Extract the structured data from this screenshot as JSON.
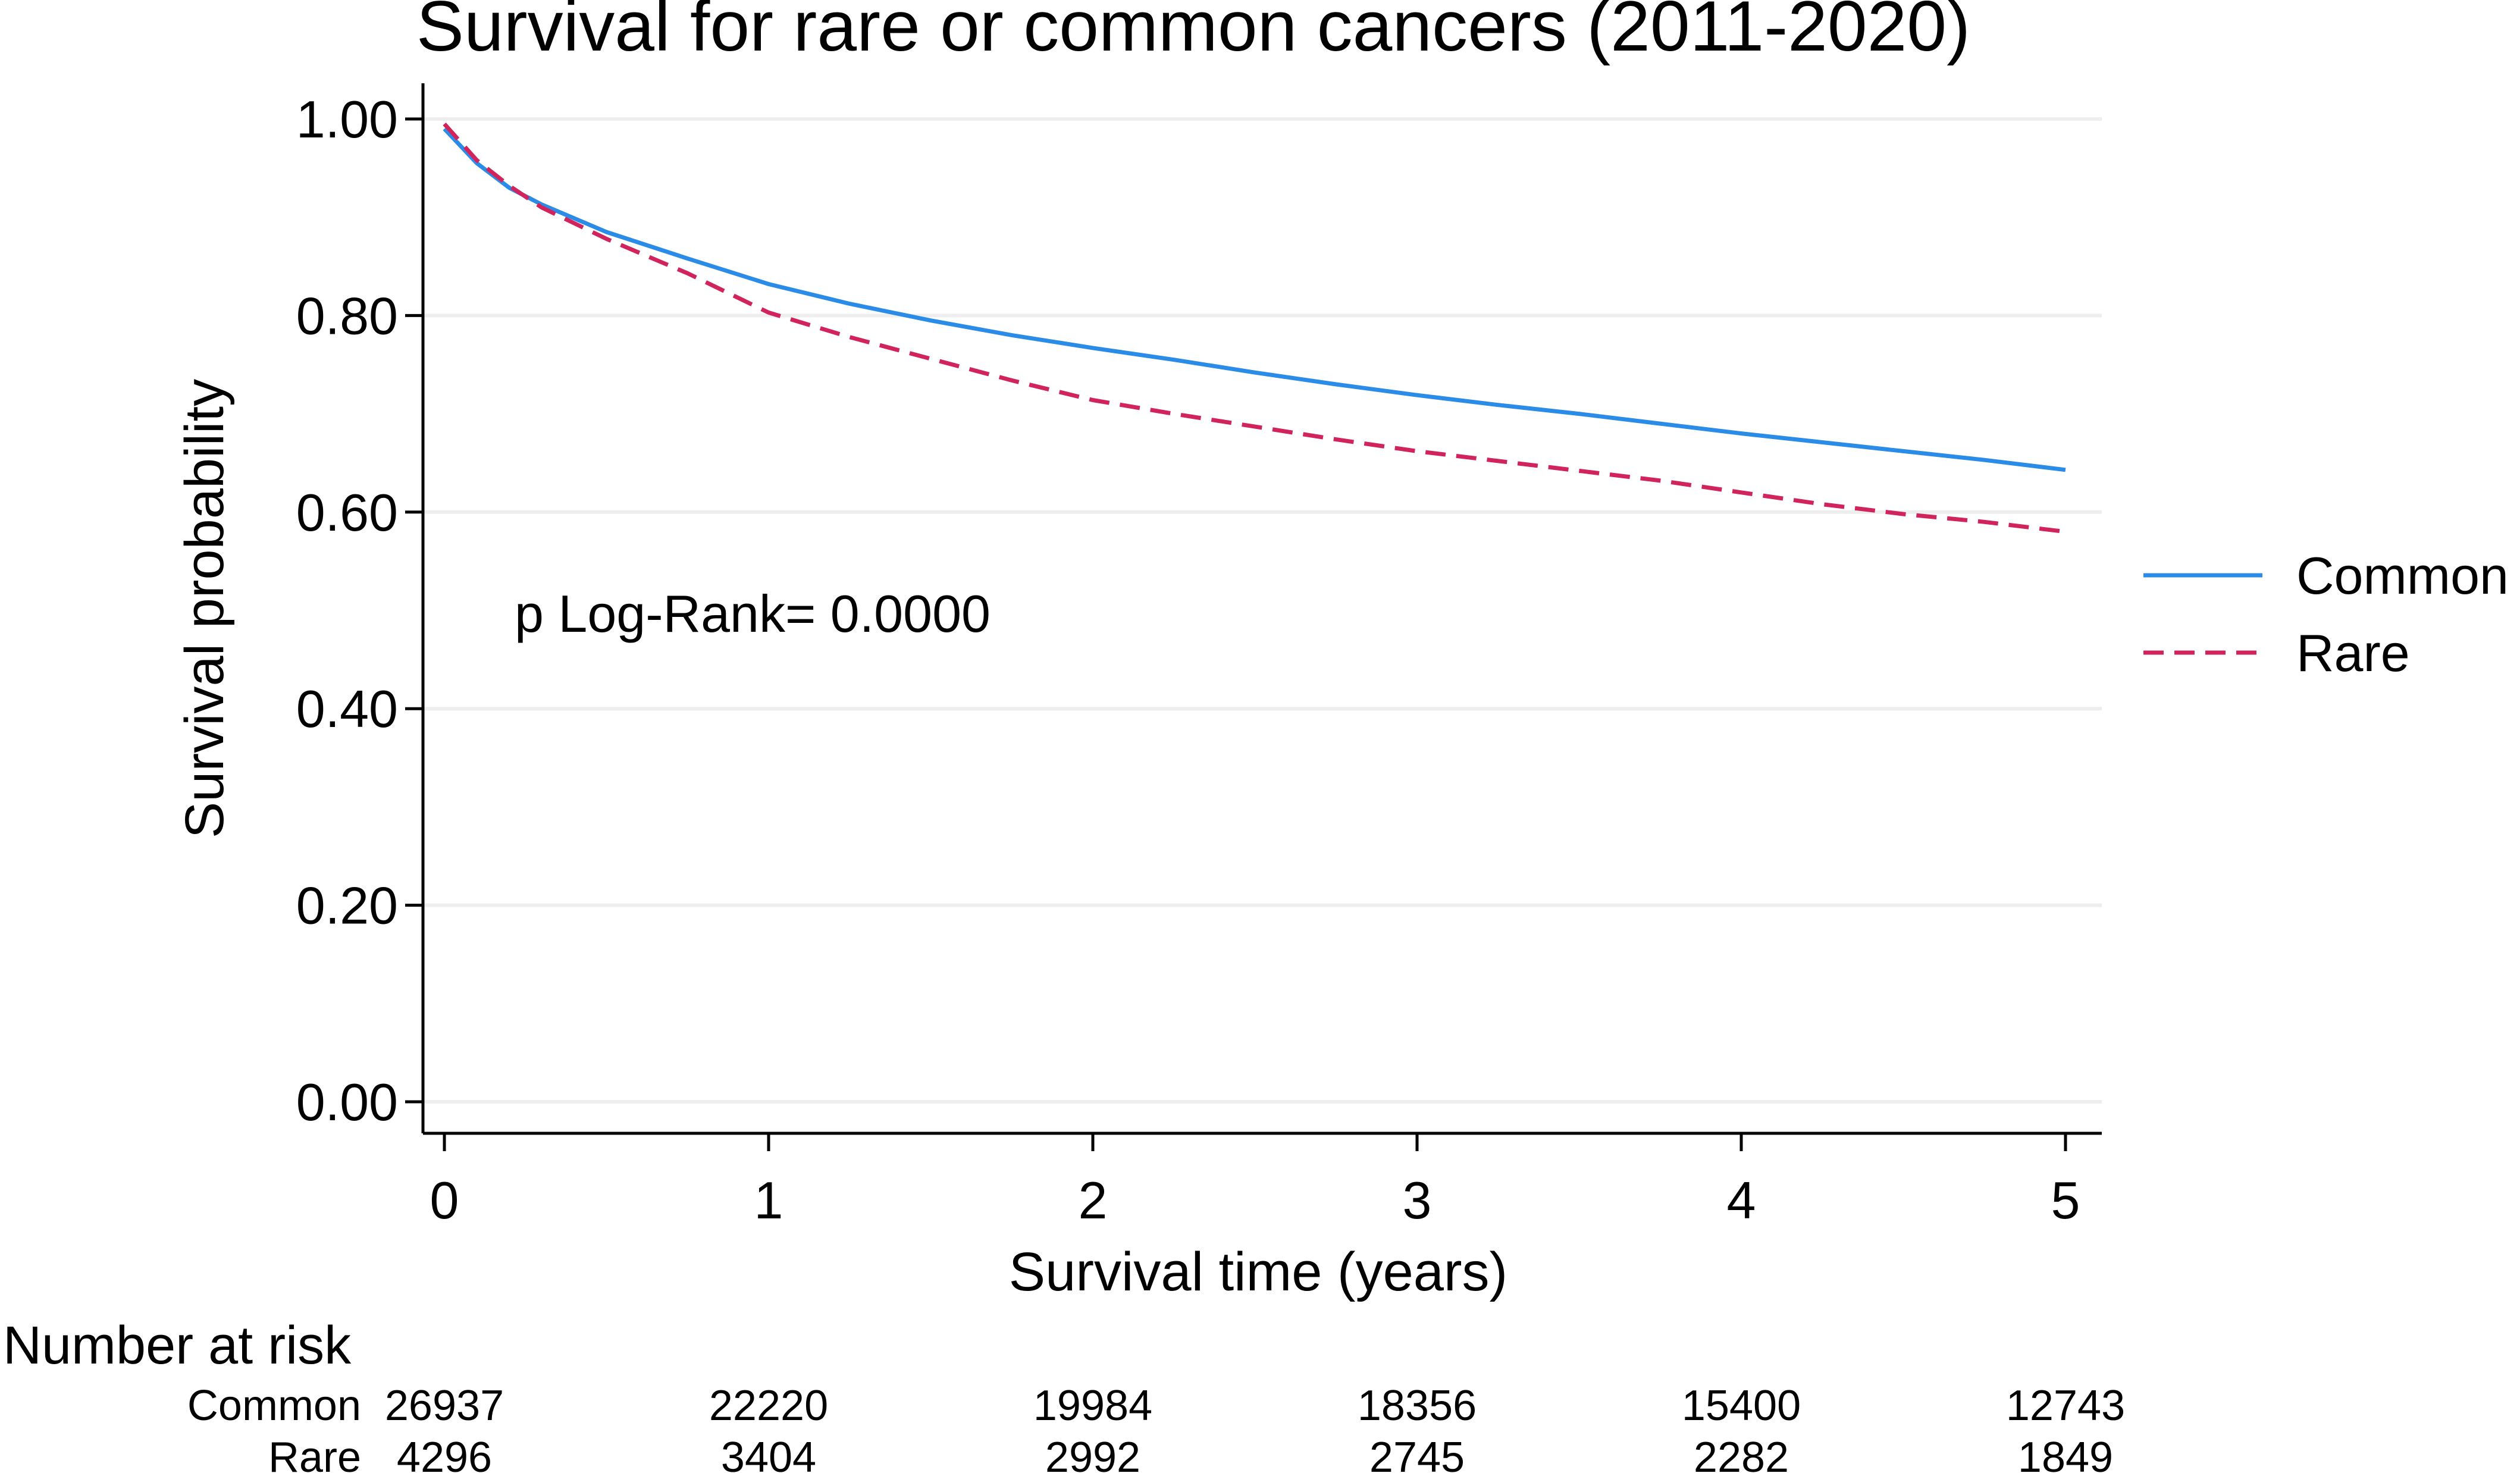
{
  "chart_data": {
    "type": "line",
    "title": "Survival for rare or common cancers (2011-2020)",
    "xlabel": "Survival time (years)",
    "ylabel": "Survival probability",
    "xlim": [
      0,
      5
    ],
    "ylim": [
      0,
      1
    ],
    "x_ticks": [
      0,
      1,
      2,
      3,
      4,
      5
    ],
    "x_tick_labels": [
      "0",
      "1",
      "2",
      "3",
      "4",
      "5"
    ],
    "y_ticks": [
      0,
      0.2,
      0.4,
      0.6,
      0.8,
      1.0
    ],
    "y_tick_labels": [
      "0.00",
      "0.20",
      "0.40",
      "0.60",
      "0.80",
      "1.00"
    ],
    "grid": true,
    "legend_position": "right",
    "annotation": "p Log-Rank= 0.0000",
    "x": [
      0,
      0.1,
      0.2,
      0.3,
      0.5,
      0.75,
      1.0,
      1.25,
      1.5,
      1.75,
      2.0,
      2.25,
      2.5,
      2.75,
      3.0,
      3.25,
      3.5,
      3.75,
      4.0,
      4.25,
      4.5,
      4.75,
      5.0
    ],
    "series": [
      {
        "name": "Common",
        "color": "#2b8ce8",
        "style": "solid",
        "values": [
          0.99,
          0.955,
          0.93,
          0.913,
          0.885,
          0.858,
          0.832,
          0.812,
          0.795,
          0.78,
          0.767,
          0.755,
          0.742,
          0.73,
          0.719,
          0.709,
          0.7,
          0.69,
          0.68,
          0.671,
          0.662,
          0.653,
          0.643
        ]
      },
      {
        "name": "Rare",
        "color": "#d1245c",
        "style": "dashed",
        "values": [
          0.995,
          0.958,
          0.932,
          0.91,
          0.878,
          0.843,
          0.803,
          0.778,
          0.756,
          0.734,
          0.714,
          0.7,
          0.687,
          0.674,
          0.662,
          0.652,
          0.642,
          0.632,
          0.62,
          0.608,
          0.598,
          0.59,
          0.58
        ]
      }
    ],
    "risk_table": {
      "title": "Number at risk",
      "times": [
        0,
        1,
        2,
        3,
        4,
        5
      ],
      "rows": [
        {
          "label": "Common",
          "values": [
            "26937",
            "22220",
            "19984",
            "18356",
            "15400",
            "12743"
          ]
        },
        {
          "label": "Rare",
          "values": [
            "4296",
            "3404",
            "2992",
            "2745",
            "2282",
            "1849"
          ]
        }
      ]
    }
  }
}
